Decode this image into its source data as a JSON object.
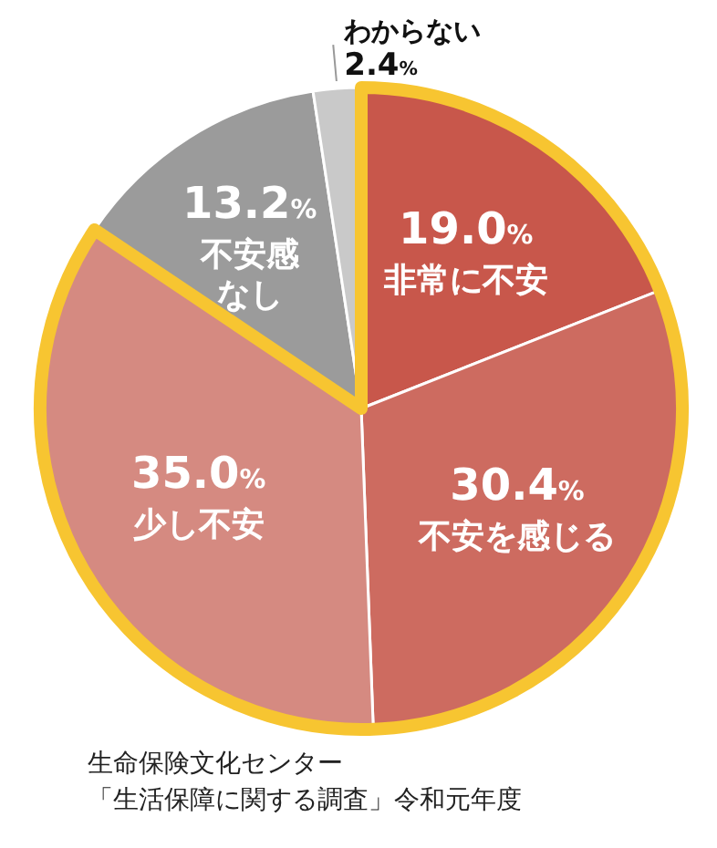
{
  "chart_data": {
    "type": "pie",
    "categories": [
      "非常に不安",
      "不安を感じる",
      "少し不安",
      "不安感なし",
      "わからない"
    ],
    "values": [
      19.0,
      30.4,
      35.0,
      13.2,
      2.4
    ],
    "colors": [
      "#c8574b",
      "#cd6b60",
      "#d58a81",
      "#9b9b9b",
      "#c9c9c9"
    ],
    "value_labels": [
      "19.0%",
      "30.4%",
      "35.0%",
      "13.2%",
      "2.4%"
    ],
    "annotations": [
      "生命保険文化センター",
      "「生活保障に関する調査」令和元年度"
    ]
  }
}
